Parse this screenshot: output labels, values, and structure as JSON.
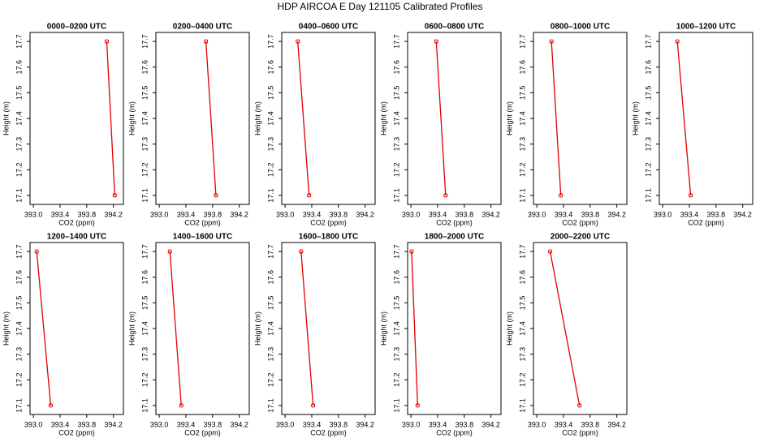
{
  "title": "HDP AIRCOA E  Day 121105  Calibrated Profiles",
  "chart_data": [
    {
      "type": "line",
      "title": "0000–0200 UTC",
      "xlabel": "CO2 (ppm)",
      "ylabel": "Height (m)",
      "x": [
        394.22,
        394.1
      ],
      "values": [
        17.1,
        17.7
      ],
      "color": "#e00000",
      "xlim": [
        392.95,
        394.35
      ],
      "ylim": [
        17.065,
        17.735
      ],
      "xticks": [
        {
          "value": 393,
          "label": "393.0"
        },
        393.4,
        393.8,
        394.2
      ],
      "yticks": [
        17.1,
        17.2,
        17.3,
        17.4,
        17.5,
        17.6,
        17.7
      ]
    },
    {
      "type": "line",
      "title": "0200–0400 UTC",
      "xlabel": "CO2 (ppm)",
      "ylabel": "Height (m)",
      "x": [
        393.85,
        393.7
      ],
      "values": [
        17.1,
        17.7
      ],
      "color": "#e00000",
      "xlim": [
        392.95,
        394.35
      ],
      "ylim": [
        17.065,
        17.735
      ],
      "xticks": [
        {
          "value": 393,
          "label": "393.0"
        },
        393.4,
        393.8,
        394.2
      ],
      "yticks": [
        17.1,
        17.2,
        17.3,
        17.4,
        17.5,
        17.6,
        17.7
      ]
    },
    {
      "type": "line",
      "title": "0400–0600 UTC",
      "xlabel": "CO2 (ppm)",
      "ylabel": "Height (m)",
      "x": [
        393.36,
        393.19
      ],
      "values": [
        17.1,
        17.7
      ],
      "color": "#e00000",
      "xlim": [
        392.95,
        394.35
      ],
      "ylim": [
        17.065,
        17.735
      ],
      "xticks": [
        {
          "value": 393,
          "label": "393.0"
        },
        393.4,
        393.8,
        394.2
      ],
      "yticks": [
        17.1,
        17.2,
        17.3,
        17.4,
        17.5,
        17.6,
        17.7
      ]
    },
    {
      "type": "line",
      "title": "0600–0800 UTC",
      "xlabel": "CO2 (ppm)",
      "ylabel": "Height (m)",
      "x": [
        393.52,
        393.38
      ],
      "values": [
        17.1,
        17.7
      ],
      "color": "#e00000",
      "xlim": [
        392.95,
        394.35
      ],
      "ylim": [
        17.065,
        17.735
      ],
      "xticks": [
        {
          "value": 393,
          "label": "393.0"
        },
        393.4,
        393.8,
        394.2
      ],
      "yticks": [
        17.1,
        17.2,
        17.3,
        17.4,
        17.5,
        17.6,
        17.7
      ]
    },
    {
      "type": "line",
      "title": "0800–1000 UTC",
      "xlabel": "CO2 (ppm)",
      "ylabel": "Height (m)",
      "x": [
        393.36,
        393.22
      ],
      "values": [
        17.1,
        17.7
      ],
      "color": "#e00000",
      "xlim": [
        392.95,
        394.35
      ],
      "ylim": [
        17.065,
        17.735
      ],
      "xticks": [
        {
          "value": 393,
          "label": "393.0"
        },
        393.4,
        393.8,
        394.2
      ],
      "yticks": [
        17.1,
        17.2,
        17.3,
        17.4,
        17.5,
        17.6,
        17.7
      ]
    },
    {
      "type": "line",
      "title": "1000–1200 UTC",
      "xlabel": "CO2 (ppm)",
      "ylabel": "Height (m)",
      "x": [
        393.42,
        393.22
      ],
      "values": [
        17.1,
        17.7
      ],
      "color": "#e00000",
      "xlim": [
        392.95,
        394.35
      ],
      "ylim": [
        17.065,
        17.735
      ],
      "xticks": [
        {
          "value": 393,
          "label": "393.0"
        },
        393.4,
        393.8,
        394.2
      ],
      "yticks": [
        17.1,
        17.2,
        17.3,
        17.4,
        17.5,
        17.6,
        17.7
      ]
    },
    {
      "type": "line",
      "title": "1200–1400 UTC",
      "xlabel": "CO2 (ppm)",
      "ylabel": "Height (m)",
      "x": [
        393.26,
        393.05
      ],
      "values": [
        17.1,
        17.7
      ],
      "color": "#e00000",
      "xlim": [
        392.95,
        394.35
      ],
      "ylim": [
        17.065,
        17.735
      ],
      "xticks": [
        {
          "value": 393,
          "label": "393.0"
        },
        393.4,
        393.8,
        394.2
      ],
      "yticks": [
        17.1,
        17.2,
        17.3,
        17.4,
        17.5,
        17.6,
        17.7
      ]
    },
    {
      "type": "line",
      "title": "1400–1600 UTC",
      "xlabel": "CO2 (ppm)",
      "ylabel": "Height (m)",
      "x": [
        393.33,
        393.16
      ],
      "values": [
        17.1,
        17.7
      ],
      "color": "#e00000",
      "xlim": [
        392.95,
        394.35
      ],
      "ylim": [
        17.065,
        17.735
      ],
      "xticks": [
        {
          "value": 393,
          "label": "393.0"
        },
        393.4,
        393.8,
        394.2
      ],
      "yticks": [
        17.1,
        17.2,
        17.3,
        17.4,
        17.5,
        17.6,
        17.7
      ]
    },
    {
      "type": "line",
      "title": "1600–1800 UTC",
      "xlabel": "CO2 (ppm)",
      "ylabel": "Height (m)",
      "x": [
        393.42,
        393.24
      ],
      "values": [
        17.1,
        17.7
      ],
      "color": "#e00000",
      "xlim": [
        392.95,
        394.35
      ],
      "ylim": [
        17.065,
        17.735
      ],
      "xticks": [
        {
          "value": 393,
          "label": "393.0"
        },
        393.4,
        393.8,
        394.2
      ],
      "yticks": [
        17.1,
        17.2,
        17.3,
        17.4,
        17.5,
        17.6,
        17.7
      ]
    },
    {
      "type": "line",
      "title": "1800–2000 UTC",
      "xlabel": "CO2 (ppm)",
      "ylabel": "Height (m)",
      "x": [
        393.1,
        393.01
      ],
      "values": [
        17.1,
        17.7
      ],
      "color": "#e00000",
      "xlim": [
        392.95,
        394.35
      ],
      "ylim": [
        17.065,
        17.735
      ],
      "xticks": [
        {
          "value": 393,
          "label": "393.0"
        },
        393.4,
        393.8,
        394.2
      ],
      "yticks": [
        17.1,
        17.2,
        17.3,
        17.4,
        17.5,
        17.6,
        17.7
      ]
    },
    {
      "type": "line",
      "title": "2000–2200 UTC",
      "xlabel": "CO2 (ppm)",
      "ylabel": "Height (m)",
      "x": [
        393.64,
        393.2
      ],
      "values": [
        17.1,
        17.7
      ],
      "color": "#e00000",
      "xlim": [
        392.95,
        394.35
      ],
      "ylim": [
        17.065,
        17.735
      ],
      "xticks": [
        {
          "value": 393,
          "label": "393.0"
        },
        393.4,
        393.8,
        394.2
      ],
      "yticks": [
        17.1,
        17.2,
        17.3,
        17.4,
        17.5,
        17.6,
        17.7
      ]
    }
  ]
}
